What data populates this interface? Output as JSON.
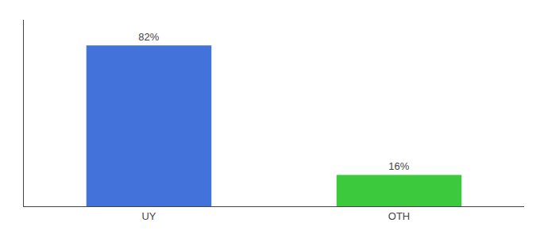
{
  "chart_data": {
    "type": "bar",
    "categories": [
      "UY",
      "OTH"
    ],
    "values": [
      82,
      16
    ],
    "value_labels": [
      "82%",
      "16%"
    ],
    "colors": [
      "#4472db",
      "#3dc93d"
    ],
    "ylim": [
      0,
      95
    ],
    "data_labels": true,
    "tick_labels": "x",
    "grid": false
  }
}
